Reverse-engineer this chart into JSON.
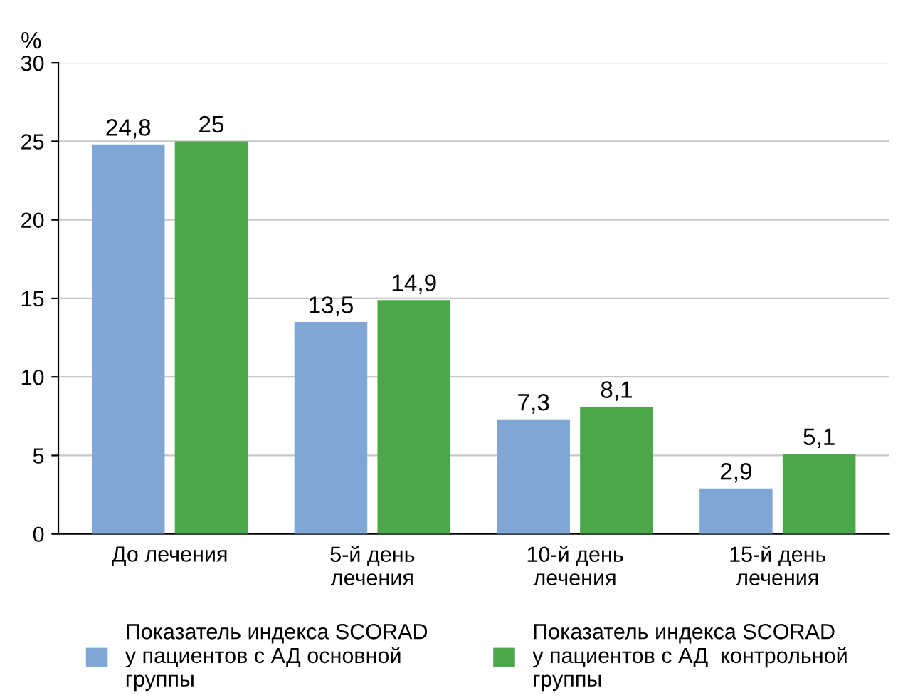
{
  "chart_data": {
    "type": "bar",
    "ylabel": "%",
    "categories": [
      "До лечения",
      "5-й день\nлечения",
      "10-й день\nлечения",
      "15-й день\nлечения"
    ],
    "series": [
      {
        "name": "Показатель индекса SCORAD\nу пациентов с АД основной\nгруппы",
        "color": "#7fa6d4",
        "values": [
          24.8,
          13.5,
          7.3,
          2.9
        ],
        "value_labels": [
          "24,8",
          "13,5",
          "7,3",
          "2,9"
        ]
      },
      {
        "name": "Показатель индекса SCORAD\nу пациентов с АД  контрольной\nгруппы",
        "color": "#4aa84a",
        "values": [
          25,
          14.9,
          8.1,
          5.1
        ],
        "value_labels": [
          "25",
          "14,9",
          "8,1",
          "5,1"
        ]
      }
    ],
    "ylim": [
      0,
      30
    ],
    "yticks": [
      0,
      5,
      10,
      15,
      20,
      25,
      30
    ],
    "grid": "y",
    "legend": "bottom"
  }
}
